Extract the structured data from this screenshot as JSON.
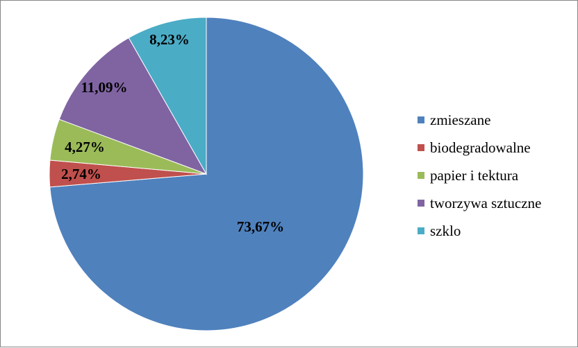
{
  "chart_data": {
    "type": "pie",
    "title": "",
    "legend_position": "right",
    "slices": [
      {
        "label": "zmieszane",
        "value": 73.67,
        "value_label": "73,67%",
        "color": "#4F81BD"
      },
      {
        "label": "biodegradowalne",
        "value": 2.74,
        "value_label": "2,74%",
        "color": "#C0504D"
      },
      {
        "label": "papier i tektura",
        "value": 4.27,
        "value_label": "4,27%",
        "color": "#9BBB59"
      },
      {
        "label": "tworzywa sztuczne",
        "value": 11.09,
        "value_label": "11,09%",
        "color": "#8064A2"
      },
      {
        "label": "szklo",
        "value": 8.23,
        "value_label": "8,23%",
        "color": "#4BACC6"
      }
    ]
  }
}
